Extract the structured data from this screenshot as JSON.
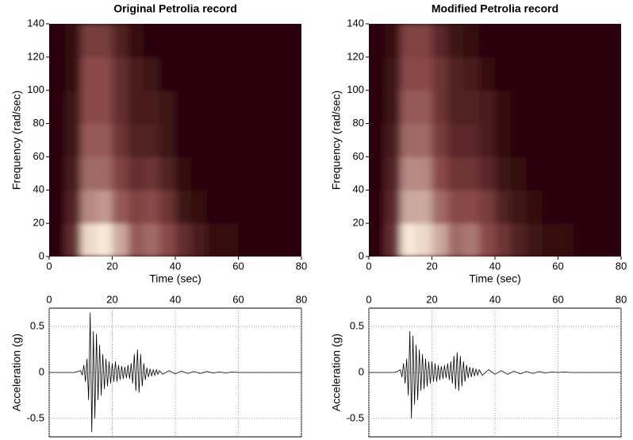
{
  "chart_data": [
    {
      "type": "heatmap",
      "title": "Original Petrolia record",
      "xlabel": "Time (sec)",
      "ylabel": "Frequency (rad/sec)",
      "x_bins": [
        0,
        5,
        10,
        15,
        20,
        25,
        30,
        35,
        40,
        45,
        50,
        55,
        60,
        65,
        70,
        75,
        80
      ],
      "y_bins": [
        0,
        20,
        40,
        60,
        80,
        100,
        120,
        140
      ],
      "z": [
        [
          0,
          0.3,
          0.95,
          1,
          0.8,
          0.55,
          0.6,
          0.5,
          0.3,
          0.15,
          0.05,
          0.05,
          0,
          0,
          0,
          0
        ],
        [
          0,
          0.2,
          0.7,
          0.75,
          0.55,
          0.45,
          0.5,
          0.35,
          0.1,
          0.05,
          0,
          0,
          0,
          0,
          0,
          0
        ],
        [
          0,
          0.15,
          0.6,
          0.6,
          0.45,
          0.3,
          0.35,
          0.2,
          0.05,
          0,
          0,
          0,
          0,
          0,
          0,
          0
        ],
        [
          0,
          0.1,
          0.55,
          0.55,
          0.35,
          0.2,
          0.2,
          0.1,
          0,
          0,
          0,
          0,
          0,
          0,
          0,
          0
        ],
        [
          0,
          0.1,
          0.5,
          0.5,
          0.3,
          0.15,
          0.15,
          0.1,
          0,
          0,
          0,
          0,
          0,
          0,
          0,
          0
        ],
        [
          0,
          0.05,
          0.5,
          0.5,
          0.3,
          0.15,
          0.1,
          0,
          0,
          0,
          0,
          0,
          0,
          0,
          0,
          0
        ],
        [
          0,
          0.05,
          0.4,
          0.4,
          0.2,
          0.05,
          0,
          0,
          0,
          0,
          0,
          0,
          0,
          0,
          0,
          0
        ]
      ],
      "colormap": [
        "#2b0508",
        "#8a4a4a",
        "#f7e8d8"
      ],
      "xlim": [
        0,
        80
      ],
      "ylim": [
        0,
        140
      ],
      "xticks": [
        0,
        20,
        40,
        60,
        80
      ],
      "yticks": [
        0,
        20,
        40,
        60,
        80,
        100,
        120,
        140
      ]
    },
    {
      "type": "heatmap",
      "title": "Modified Petrolia record",
      "xlabel": "Time (sec)",
      "ylabel": "Frequency (rad/sec)",
      "x_bins": [
        0,
        5,
        10,
        15,
        20,
        25,
        30,
        35,
        40,
        45,
        50,
        55,
        60,
        65,
        70,
        75,
        80
      ],
      "y_bins": [
        0,
        20,
        40,
        60,
        80,
        100,
        120,
        140
      ],
      "z": [
        [
          0,
          0.3,
          1,
          0.95,
          0.8,
          0.6,
          0.65,
          0.5,
          0.35,
          0.2,
          0.1,
          0.05,
          0.05,
          0,
          0,
          0
        ],
        [
          0,
          0.25,
          0.8,
          0.8,
          0.6,
          0.5,
          0.5,
          0.4,
          0.2,
          0.1,
          0.05,
          0,
          0,
          0,
          0,
          0
        ],
        [
          0,
          0.2,
          0.7,
          0.7,
          0.5,
          0.35,
          0.35,
          0.25,
          0.1,
          0.05,
          0,
          0,
          0,
          0,
          0,
          0
        ],
        [
          0,
          0.15,
          0.6,
          0.6,
          0.4,
          0.25,
          0.25,
          0.15,
          0.05,
          0,
          0,
          0,
          0,
          0,
          0,
          0
        ],
        [
          0,
          0.1,
          0.55,
          0.55,
          0.35,
          0.2,
          0.2,
          0.15,
          0.05,
          0,
          0,
          0,
          0,
          0,
          0,
          0
        ],
        [
          0,
          0.1,
          0.5,
          0.5,
          0.35,
          0.2,
          0.15,
          0.05,
          0,
          0,
          0,
          0,
          0,
          0,
          0,
          0
        ],
        [
          0,
          0.05,
          0.45,
          0.45,
          0.25,
          0.1,
          0.05,
          0,
          0,
          0,
          0,
          0,
          0,
          0,
          0,
          0
        ]
      ],
      "colormap": [
        "#2b0508",
        "#8a4a4a",
        "#f7e8d8"
      ],
      "xlim": [
        0,
        80
      ],
      "ylim": [
        0,
        140
      ],
      "xticks": [
        0,
        20,
        40,
        60,
        80
      ],
      "yticks": [
        0,
        20,
        40,
        60,
        80,
        100,
        120,
        140
      ]
    },
    {
      "type": "line",
      "ylabel": "Acceleration (g)",
      "color": "#000000",
      "grid": true,
      "x": [
        0,
        8,
        9,
        10,
        10.5,
        11,
        11.5,
        12,
        12.5,
        13,
        13.5,
        14,
        14.5,
        15,
        15.5,
        16,
        16.5,
        17,
        17.5,
        18,
        18.5,
        19,
        19.5,
        20,
        20.5,
        21,
        21.5,
        22,
        22.5,
        23,
        23.5,
        24,
        24.5,
        25,
        25.5,
        26,
        26.5,
        27,
        27.5,
        28,
        28.5,
        29,
        29.5,
        30,
        30.5,
        31,
        31.5,
        32,
        32.5,
        33,
        33.5,
        34,
        34.5,
        35,
        36,
        38,
        40,
        42,
        44,
        46,
        48,
        50,
        52,
        54,
        56,
        58,
        60,
        62,
        64,
        66,
        68,
        70,
        72,
        74,
        76,
        78,
        80
      ],
      "values": [
        0,
        0,
        0.01,
        0.02,
        -0.03,
        0.08,
        -0.1,
        0.15,
        -0.3,
        0.65,
        -0.65,
        0.45,
        -0.5,
        0.42,
        -0.3,
        0.3,
        -0.25,
        0.2,
        -0.18,
        0.15,
        -0.15,
        0.12,
        -0.12,
        0.1,
        -0.1,
        0.12,
        -0.1,
        0.08,
        -0.08,
        0.07,
        -0.07,
        0.06,
        -0.06,
        0.08,
        -0.07,
        0.1,
        -0.12,
        0.2,
        -0.2,
        0.25,
        -0.22,
        0.2,
        -0.15,
        0.1,
        -0.08,
        0.05,
        -0.05,
        0.04,
        -0.04,
        0.03,
        -0.03,
        0.03,
        -0.02,
        0.02,
        -0.02,
        0.02,
        -0.015,
        0.015,
        -0.01,
        0.01,
        -0.01,
        0.01,
        -0.005,
        0.005,
        -0.005,
        0.005,
        0,
        0,
        0,
        0,
        0,
        0,
        0,
        0,
        0,
        0,
        0
      ],
      "xlim": [
        0,
        80
      ],
      "ylim": [
        -0.7,
        0.7
      ],
      "xticks": [
        0,
        20,
        40,
        60,
        80
      ],
      "yticks": [
        -0.5,
        0,
        0.5
      ]
    },
    {
      "type": "line",
      "ylabel": "Acceleration (g)",
      "color": "#000000",
      "grid": true,
      "x": [
        0,
        8,
        9,
        10,
        10.5,
        11,
        11.5,
        12,
        12.5,
        13,
        13.5,
        14,
        14.5,
        15,
        15.5,
        16,
        16.5,
        17,
        17.5,
        18,
        18.5,
        19,
        19.5,
        20,
        20.5,
        21,
        21.5,
        22,
        22.5,
        23,
        23.5,
        24,
        24.5,
        25,
        25.5,
        26,
        26.5,
        27,
        27.5,
        28,
        28.5,
        29,
        29.5,
        30,
        30.5,
        31,
        31.5,
        32,
        32.5,
        33,
        33.5,
        34,
        34.5,
        35,
        36,
        38,
        40,
        42,
        44,
        46,
        48,
        50,
        52,
        54,
        56,
        58,
        60,
        62,
        64,
        66,
        68,
        70,
        72,
        74,
        76,
        78,
        80
      ],
      "values": [
        0,
        0,
        0.01,
        0.03,
        -0.05,
        0.1,
        -0.12,
        0.15,
        -0.25,
        0.45,
        -0.5,
        0.4,
        -0.35,
        0.3,
        -0.3,
        0.25,
        -0.2,
        0.2,
        -0.18,
        0.15,
        -0.15,
        0.12,
        -0.12,
        0.12,
        -0.1,
        0.1,
        -0.1,
        0.08,
        -0.08,
        0.07,
        -0.07,
        0.08,
        -0.06,
        0.1,
        -0.08,
        0.12,
        -0.12,
        0.18,
        -0.18,
        0.22,
        -0.2,
        0.18,
        -0.15,
        0.12,
        -0.1,
        0.08,
        -0.06,
        0.06,
        -0.05,
        0.05,
        -0.04,
        0.04,
        -0.03,
        0.03,
        -0.03,
        0.03,
        -0.02,
        0.02,
        -0.02,
        0.015,
        -0.015,
        0.01,
        -0.01,
        0.01,
        -0.005,
        0.005,
        0,
        0.005,
        0,
        0,
        0,
        0,
        0,
        0,
        0,
        0,
        0
      ],
      "xlim": [
        0,
        80
      ],
      "ylim": [
        -0.7,
        0.7
      ],
      "xticks": [
        0,
        20,
        40,
        60,
        80
      ],
      "yticks": [
        -0.5,
        0,
        0.5
      ]
    }
  ]
}
